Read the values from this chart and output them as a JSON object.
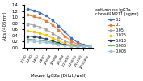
{
  "title": "anti-mouse IgG2a\nclone#RM211 (ug/ml)",
  "xlabel": "Mouse IgG2a (Dilut./well)",
  "ylabel": "Abs (405nm)",
  "ylim": [
    0,
    1.4
  ],
  "yticks": [
    0,
    0.2,
    0.4,
    0.6,
    0.8,
    1.0,
    1.2,
    1.4
  ],
  "x_labels": [
    "1/100",
    "1/200",
    "1/400",
    "1/800",
    "1/1600",
    "1/3200",
    "1/6400",
    "1/12800",
    "1/25600",
    "1/51200",
    "1/102400"
  ],
  "series": [
    {
      "label": "0.2",
      "color": "#4472C4",
      "marker": "s",
      "values": [
        1.28,
        1.22,
        1.15,
        1.05,
        0.9,
        0.72,
        0.52,
        0.32,
        0.18,
        0.1,
        0.07
      ]
    },
    {
      "label": "0.1",
      "color": "#ED7D31",
      "marker": "s",
      "values": [
        1.08,
        1.02,
        0.97,
        0.88,
        0.75,
        0.58,
        0.38,
        0.22,
        0.12,
        0.08,
        0.06
      ]
    },
    {
      "label": "0.05",
      "color": "#A5A5A5",
      "marker": "^",
      "values": [
        0.78,
        0.74,
        0.68,
        0.6,
        0.48,
        0.35,
        0.22,
        0.14,
        0.08,
        0.06,
        0.05
      ]
    },
    {
      "label": "0.025",
      "color": "#FFC000",
      "marker": "s",
      "values": [
        0.55,
        0.52,
        0.47,
        0.41,
        0.32,
        0.22,
        0.14,
        0.09,
        0.06,
        0.05,
        0.04
      ]
    },
    {
      "label": "0.013",
      "color": "#264478",
      "marker": "s",
      "values": [
        0.38,
        0.36,
        0.33,
        0.28,
        0.22,
        0.15,
        0.1,
        0.07,
        0.05,
        0.04,
        0.04
      ]
    },
    {
      "label": "0.006",
      "color": "#70AD47",
      "marker": "+",
      "values": [
        0.28,
        0.26,
        0.24,
        0.21,
        0.17,
        0.12,
        0.08,
        0.06,
        0.05,
        0.04,
        0.04
      ]
    },
    {
      "label": "0.003",
      "color": "#9DC3E6",
      "marker": "s",
      "values": [
        0.22,
        0.21,
        0.19,
        0.17,
        0.14,
        0.1,
        0.07,
        0.05,
        0.04,
        0.04,
        0.04
      ]
    }
  ]
}
